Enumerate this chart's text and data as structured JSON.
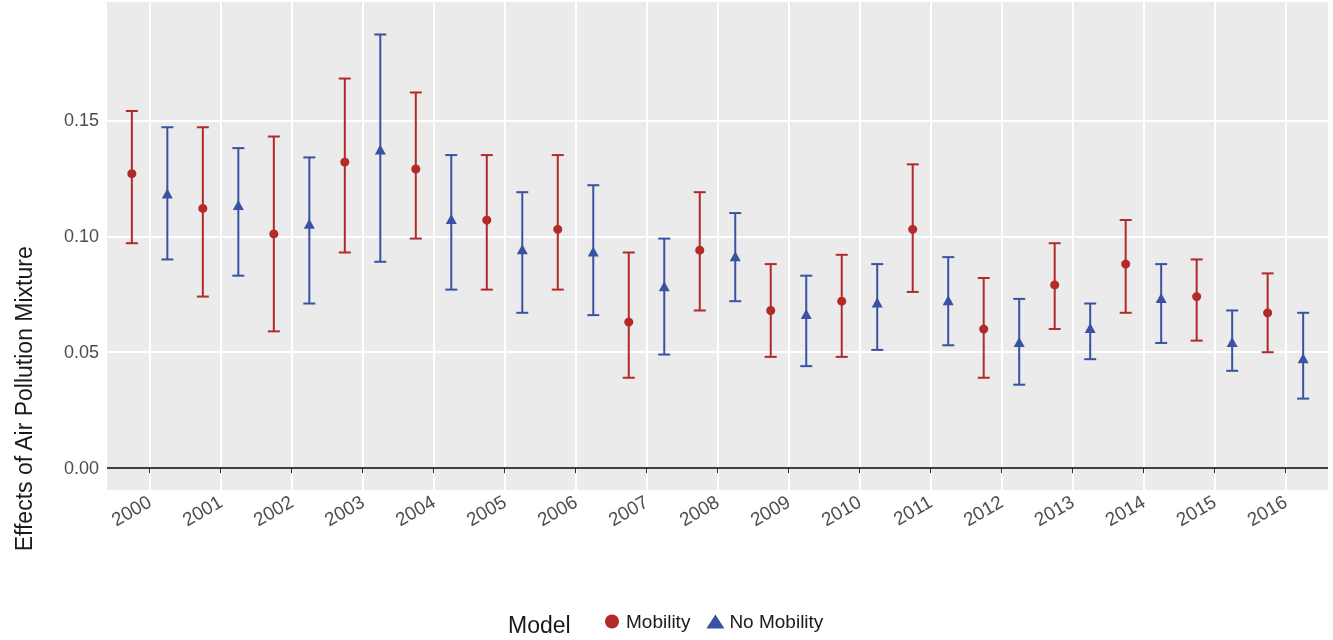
{
  "chart_data": {
    "type": "scatter",
    "ylabel": "Effects of Air Pollution Mixture",
    "legend_title": "Model",
    "categories": [
      "2000",
      "2001",
      "2002",
      "2003",
      "2004",
      "2005",
      "2006",
      "2007",
      "2008",
      "2009",
      "2010",
      "2011",
      "2012",
      "2013",
      "2014",
      "2015",
      "2016"
    ],
    "series": [
      {
        "name": "Mobility",
        "color": "#b22a2a",
        "marker": "circle",
        "values": [
          0.127,
          0.112,
          0.101,
          0.132,
          0.129,
          0.107,
          0.103,
          0.063,
          0.094,
          0.068,
          0.072,
          0.103,
          0.06,
          0.079,
          0.088,
          0.074,
          0.067
        ],
        "errors": [
          [
            0.097,
            0.154
          ],
          [
            0.074,
            0.147
          ],
          [
            0.059,
            0.143
          ],
          [
            0.093,
            0.168
          ],
          [
            0.099,
            0.162
          ],
          [
            0.077,
            0.135
          ],
          [
            0.077,
            0.135
          ],
          [
            0.039,
            0.093
          ],
          [
            0.068,
            0.119
          ],
          [
            0.048,
            0.088
          ],
          [
            0.048,
            0.092
          ],
          [
            0.076,
            0.131
          ],
          [
            0.039,
            0.082
          ],
          [
            0.06,
            0.097
          ],
          [
            0.067,
            0.107
          ],
          [
            0.055,
            0.09
          ],
          [
            0.05,
            0.084
          ]
        ]
      },
      {
        "name": "No Mobility",
        "color": "#3a52a4",
        "marker": "triangle",
        "values": [
          0.118,
          0.113,
          0.105,
          0.137,
          0.107,
          0.094,
          0.093,
          0.078,
          0.091,
          0.066,
          0.071,
          0.072,
          0.054,
          0.06,
          0.073,
          0.054,
          0.047
        ],
        "errors": [
          [
            0.09,
            0.147
          ],
          [
            0.083,
            0.138
          ],
          [
            0.071,
            0.134
          ],
          [
            0.089,
            0.187
          ],
          [
            0.077,
            0.135
          ],
          [
            0.067,
            0.119
          ],
          [
            0.066,
            0.122
          ],
          [
            0.049,
            0.099
          ],
          [
            0.072,
            0.11
          ],
          [
            0.044,
            0.083
          ],
          [
            0.051,
            0.088
          ],
          [
            0.053,
            0.091
          ],
          [
            0.036,
            0.073
          ],
          [
            0.047,
            0.071
          ],
          [
            0.054,
            0.088
          ],
          [
            0.042,
            0.068
          ],
          [
            0.03,
            0.067
          ]
        ]
      }
    ],
    "ylim": [
      -0.0094,
      0.201
    ],
    "yticks": [
      {
        "value": 0,
        "label": "0.00"
      },
      {
        "value": 0.05,
        "label": "0.05"
      },
      {
        "value": 0.1,
        "label": "0.10"
      },
      {
        "value": 0.15,
        "label": "0.15"
      }
    ],
    "ref_lines": [
      {
        "axis": "y",
        "value": 0,
        "color": "#000000"
      }
    ],
    "grid": true,
    "legend": "bottom"
  }
}
